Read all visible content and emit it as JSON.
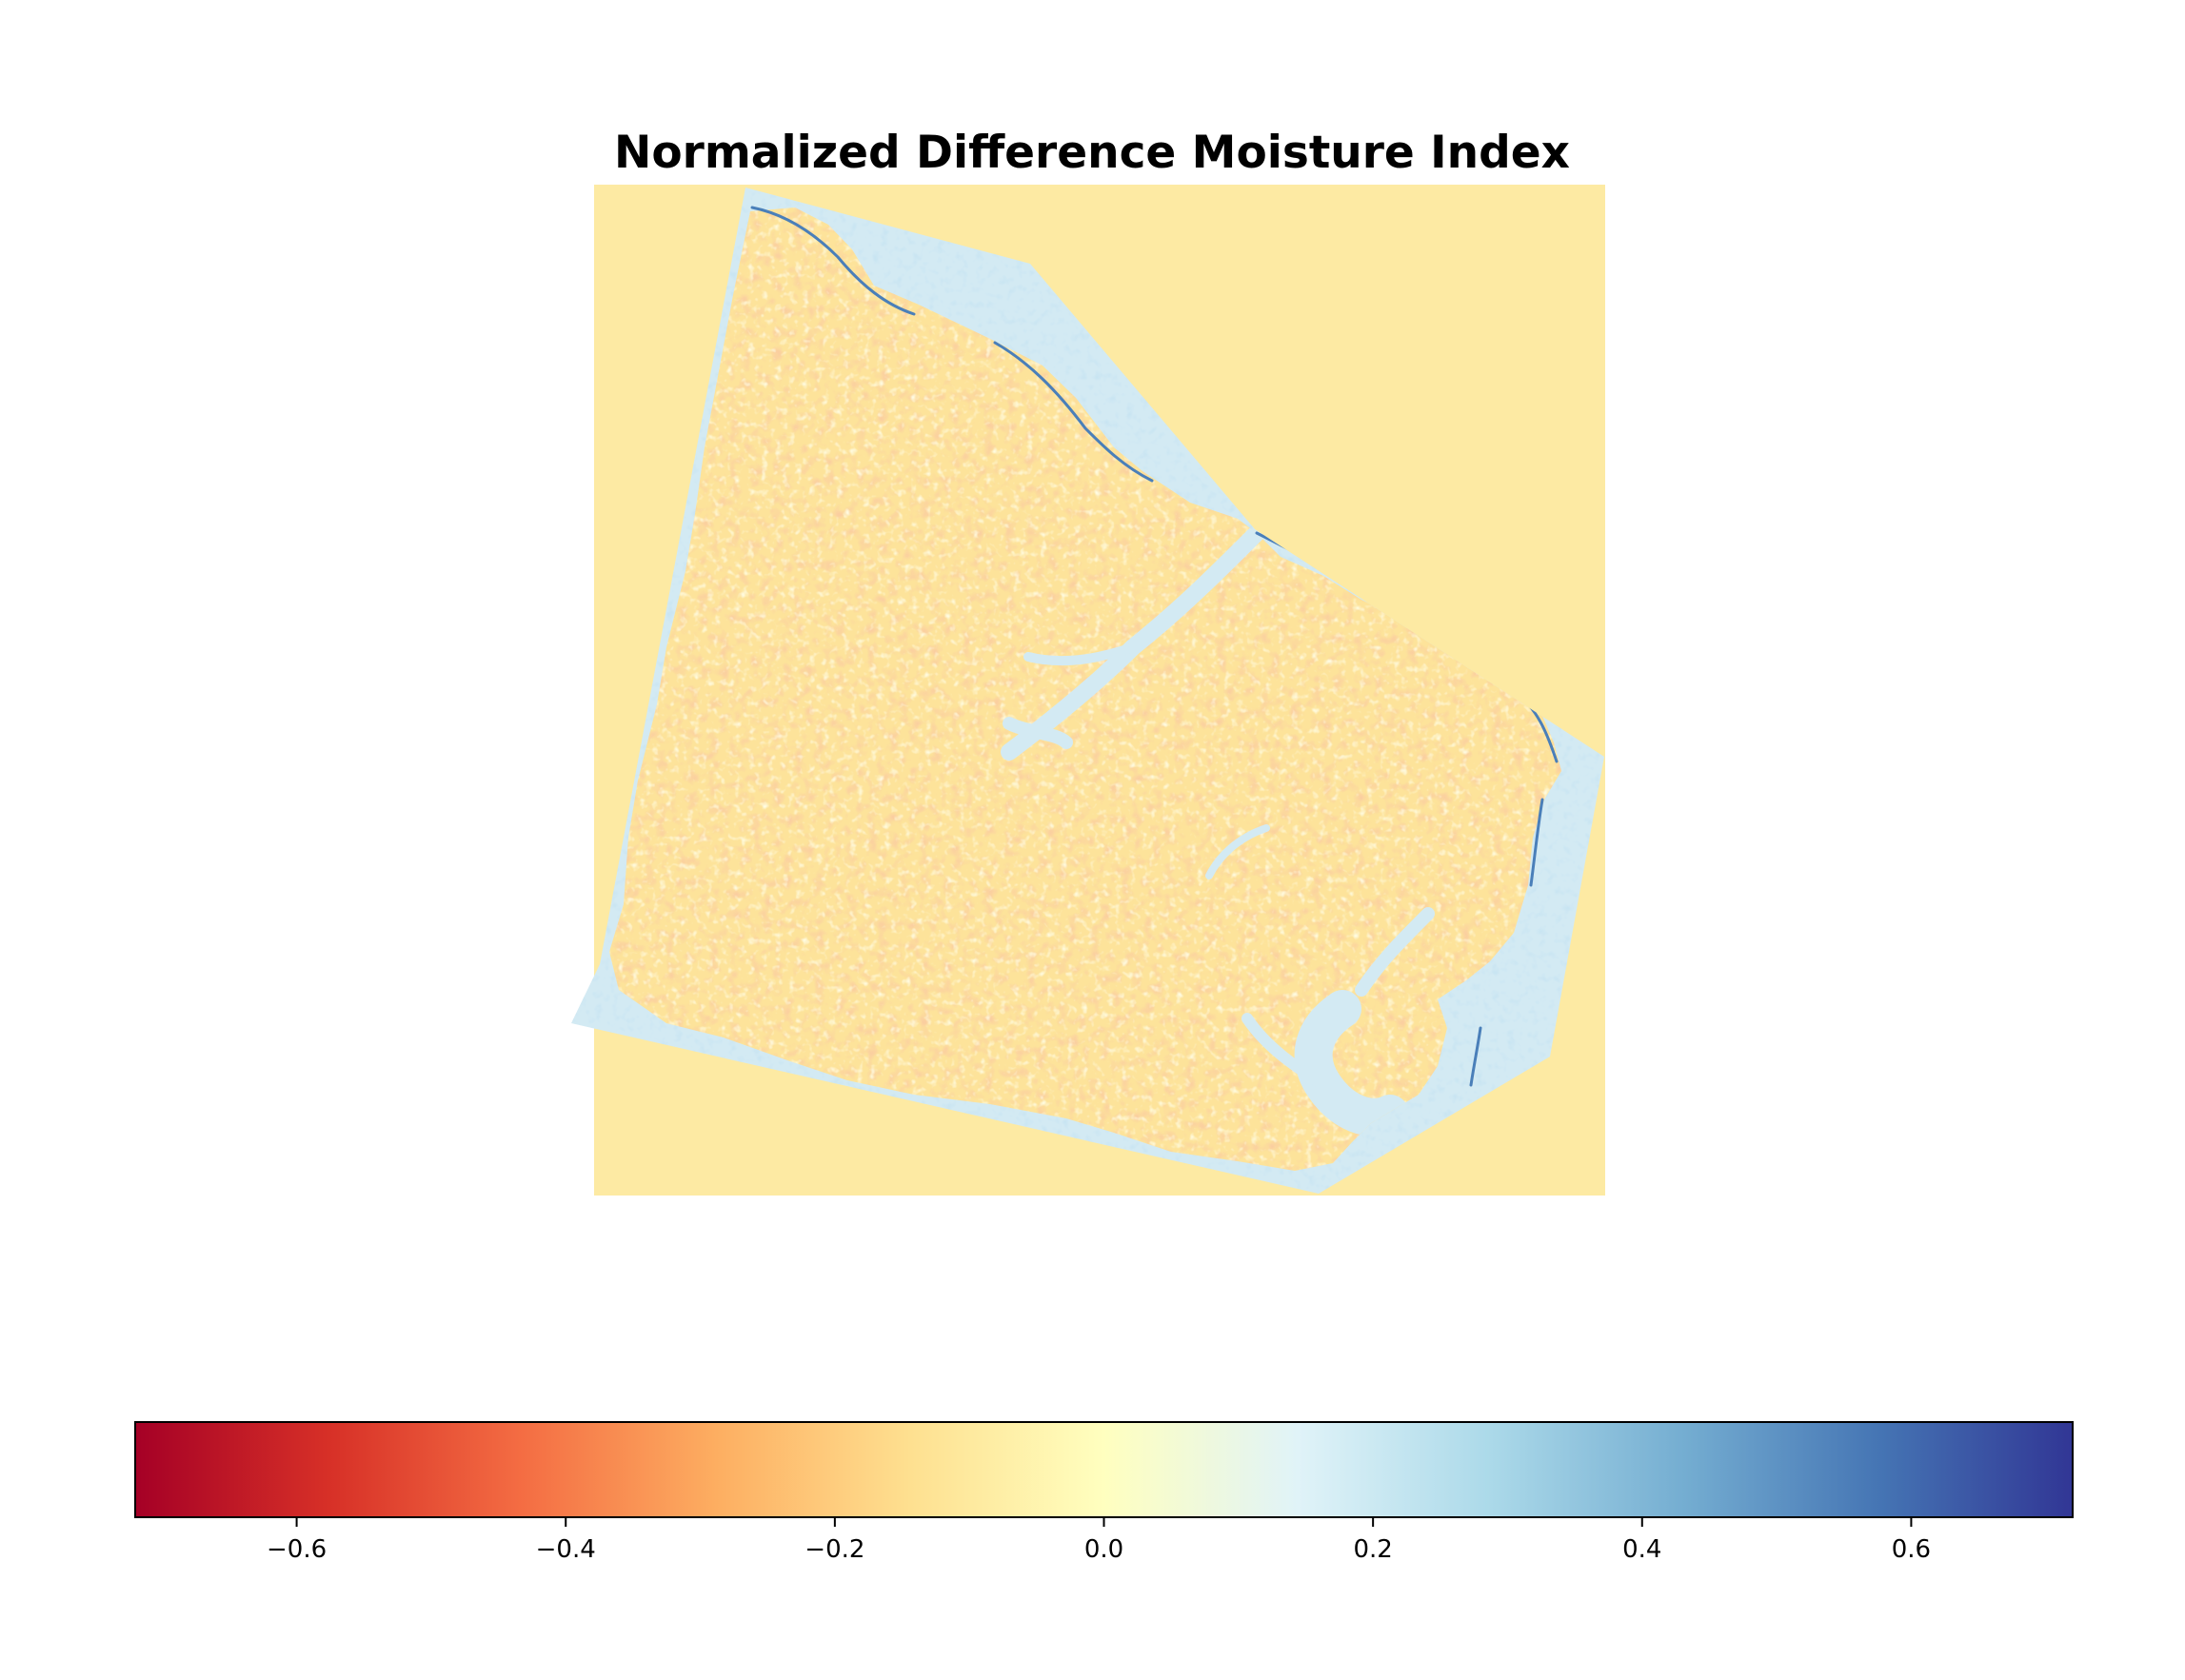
{
  "title": "Normalized Difference Moisture Index",
  "colormap": {
    "name": "RdYlBu",
    "stops": [
      "#a50026",
      "#d73027",
      "#f46d43",
      "#fdae61",
      "#fee090",
      "#ffffbf",
      "#e0f3f8",
      "#abd9e9",
      "#74add1",
      "#4575b4",
      "#313695"
    ]
  },
  "map_colors": {
    "no_data": "#fdeaa3",
    "land_base": "#fde39a",
    "land_dry": "#f9b56f",
    "land_very_dry": "#f08a4b",
    "land_neutral": "#fef6bf",
    "water": "#d3eaf3",
    "water_wet": "#9ccbe2",
    "water_deep": "#4a7fb9"
  },
  "colorbar": {
    "orientation": "horizontal",
    "vmin": -0.72,
    "vmax": 0.72,
    "ticks": [
      {
        "value": -0.6,
        "label": "−0.6"
      },
      {
        "value": -0.4,
        "label": "−0.4"
      },
      {
        "value": -0.2,
        "label": "−0.2"
      },
      {
        "value": 0.0,
        "label": "0.0"
      },
      {
        "value": 0.2,
        "label": "0.2"
      },
      {
        "value": 0.4,
        "label": "0.4"
      },
      {
        "value": 0.6,
        "label": "0.6"
      }
    ]
  }
}
